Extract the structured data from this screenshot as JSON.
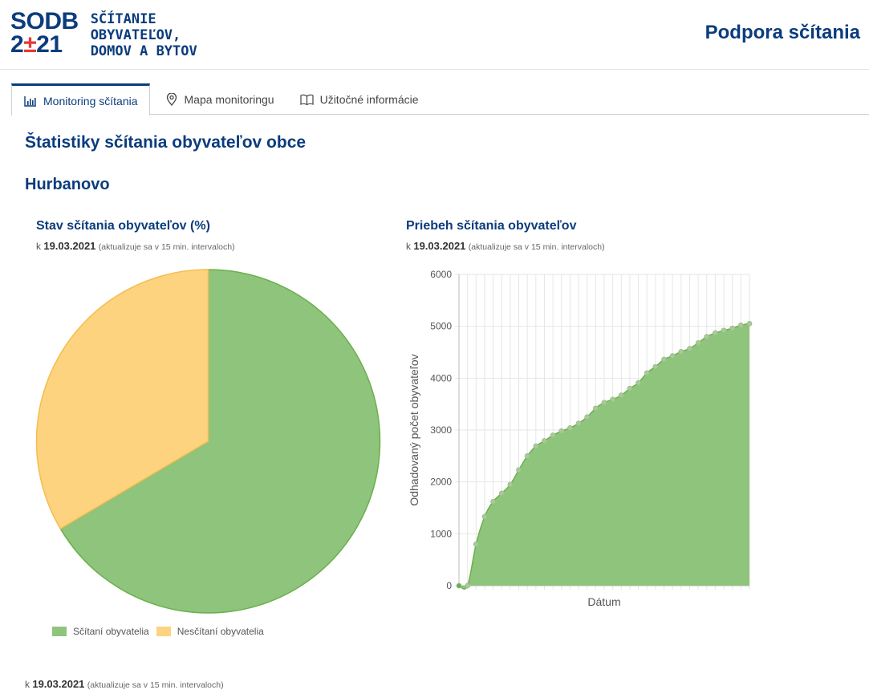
{
  "header": {
    "logo_line1": "SODB",
    "logo_line2a": "2",
    "logo_line2b": "±",
    "logo_line2c": "21",
    "logo_text": [
      "SČÍTANIE",
      "OBYVATEĽOV,",
      "DOMOV A BYTOV"
    ],
    "support_title": "Podpora sčítania"
  },
  "tabs": [
    {
      "label": "Monitoring sčítania",
      "icon": "bar-chart-icon",
      "active": true
    },
    {
      "label": "Mapa monitoringu",
      "icon": "map-pin-icon",
      "active": false
    },
    {
      "label": "Užitočné informácie",
      "icon": "book-icon",
      "active": false
    }
  ],
  "page_title": "Štatistiky sčítania obyvateľov obce",
  "city": "Hurbanovo",
  "pie_panel": {
    "title": "Stav sčítania obyvateľov (%)",
    "date_prefix": "k",
    "date": "19.03.2021",
    "date_note": "(aktualizuje sa v 15 min. intervaloch)"
  },
  "line_panel": {
    "title": "Priebeh sčítania obyvateľov",
    "date_prefix": "k",
    "date": "19.03.2021",
    "date_note": "(aktualizuje sa v 15 min. intervaloch)"
  },
  "bottom_date": {
    "prefix": "k",
    "date": "19.03.2021",
    "note": "(aktualizuje sa v 15 min. intervaloch)"
  },
  "colors": {
    "primary": "#0b3c7d",
    "accent_red": "#e53935",
    "green_fill": "#8fc47c",
    "green_line": "#6ab04c",
    "yellow_fill": "#fdd380",
    "yellow_line": "#f5bd4f"
  },
  "chart_data": [
    {
      "type": "pie",
      "title": "Stav sčítania obyvateľov (%)",
      "series": [
        {
          "name": "Sčítaní obyvatelia",
          "value": 66.5,
          "color": "#8fc47c"
        },
        {
          "name": "Nesčítaní obyvatelia",
          "value": 33.5,
          "color": "#fdd380"
        }
      ],
      "legend": "bottom"
    },
    {
      "type": "area",
      "title": "Priebeh sčítania obyvateľov",
      "xlabel": "Dátum",
      "ylabel": "Odhadovaný počet obyvateľov",
      "ylim": [
        0,
        6000
      ],
      "yticks": [
        0,
        1000,
        2000,
        3000,
        4000,
        5000,
        6000
      ],
      "grid": true,
      "values": [
        0,
        0,
        800,
        1330,
        1620,
        1780,
        1950,
        2230,
        2500,
        2690,
        2790,
        2900,
        2980,
        3040,
        3130,
        3250,
        3420,
        3530,
        3590,
        3670,
        3800,
        3910,
        4100,
        4220,
        4360,
        4430,
        4510,
        4570,
        4680,
        4800,
        4870,
        4920,
        4960,
        5020,
        5050
      ]
    }
  ]
}
